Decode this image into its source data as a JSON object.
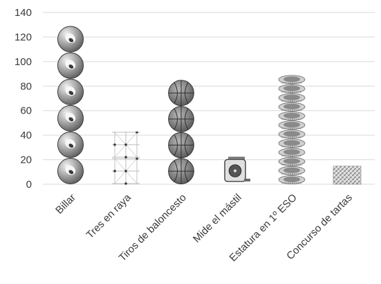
{
  "chart_data": {
    "type": "bar",
    "categories": [
      "Billar",
      "Tres en raya",
      "Tiros de baloncesto",
      "Mide el mástil",
      "Estatura en 1º ESO",
      "Concurso de tartas"
    ],
    "values": [
      129,
      43,
      85,
      23,
      89,
      15
    ],
    "ylim": [
      0,
      140
    ],
    "yticks": [
      0,
      20,
      40,
      60,
      80,
      100,
      120,
      140
    ],
    "grid": true,
    "title": "",
    "xlabel": "",
    "ylabel": "",
    "bar_pictograms": [
      "billiard-ball-icon",
      "tic-tac-toe-grid-icon",
      "basketball-icon",
      "tape-measure-icon",
      "measuring-tape-roll-icon",
      "woven-pattern-icon"
    ],
    "colors": {
      "grid": "#d9d9d9",
      "text": "#3a3a3a",
      "pictogram_dark": "#4a4a4a",
      "pictogram_light": "#d6d6d6"
    }
  }
}
